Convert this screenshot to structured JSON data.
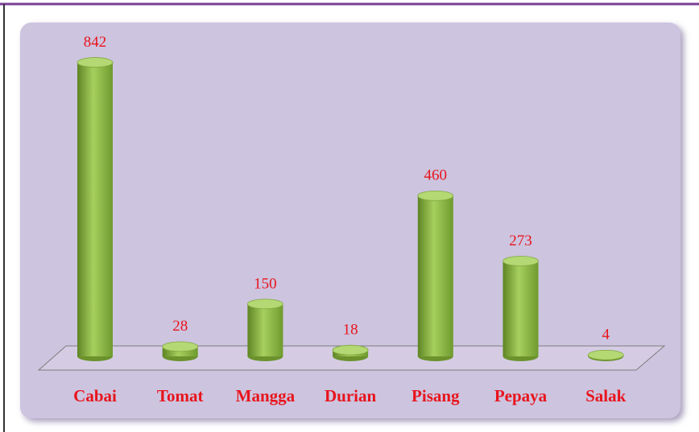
{
  "chart_data": {
    "type": "bar",
    "categories": [
      "Cabai",
      "Tomat",
      "Mangga",
      "Durian",
      "Pisang",
      "Pepaya",
      "Salak"
    ],
    "values": [
      842,
      28,
      150,
      18,
      460,
      273,
      4
    ],
    "color": "#92c04a"
  }
}
